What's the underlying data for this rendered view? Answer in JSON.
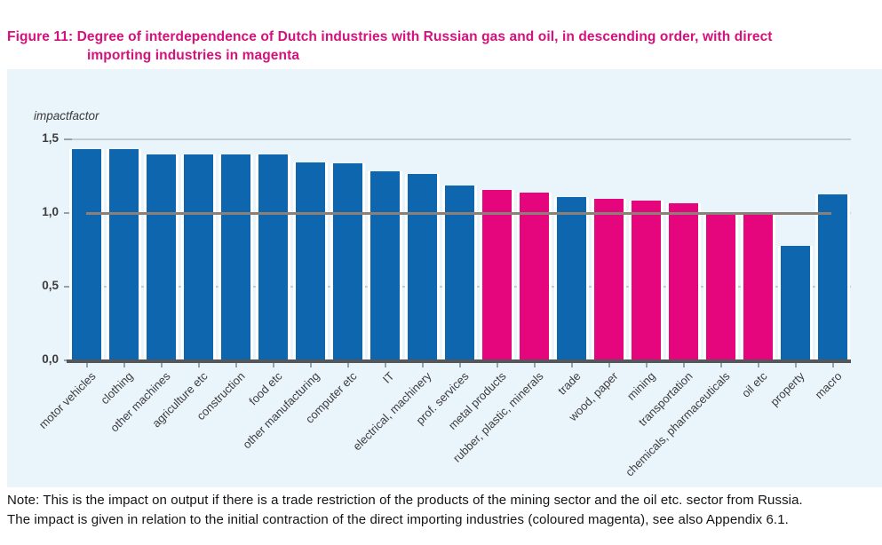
{
  "page": {
    "title": {
      "line1": "Figure 11: Degree of interdependence of Dutch industries with Russian gas and oil, in descending order, with direct",
      "line2": "importing industries in magenta",
      "color": "#d4117c"
    },
    "note": {
      "line1": "Note: This is the impact on output if there is a trade restriction of the products of the mining sector and the oil etc. sector from Russia.",
      "line2": "The impact is given in relation to the initial contraction of the direct importing industries (coloured magenta), see also Appendix 6.1."
    }
  },
  "chart_data": {
    "type": "bar",
    "title": "Degree of interdependence of Dutch industries with Russian gas and oil, in descending order, with direct importing industries in magenta",
    "ylabel": "impactfactor",
    "xlabel": "",
    "ylim": [
      0,
      1.5
    ],
    "grid": true,
    "legend": "none",
    "yticks": [
      {
        "value": 0.0,
        "label": "0,0"
      },
      {
        "value": 0.5,
        "label": "0,5"
      },
      {
        "value": 1.0,
        "label": "1,0"
      },
      {
        "value": 1.5,
        "label": "1,5"
      }
    ],
    "reference_line": {
      "y": 1.0,
      "description": "horizontal line at impactfactor 1,0 spanning first to last bar"
    },
    "categories": [
      "motor vehicles",
      "clothing",
      "other machines",
      "agriculture etc",
      "construction",
      "food etc",
      "other manufacturing",
      "computer etc",
      "IT",
      "electrical, machinery",
      "prof. services",
      "metal products",
      "rubber, plastic, minerals",
      "trade",
      "wood, paper",
      "mining",
      "transportation",
      "chemicals, pharmaceuticals",
      "oil etc",
      "property",
      "macro"
    ],
    "values": [
      1.43,
      1.43,
      1.39,
      1.39,
      1.39,
      1.39,
      1.34,
      1.33,
      1.28,
      1.26,
      1.18,
      1.15,
      1.13,
      1.1,
      1.09,
      1.08,
      1.06,
      0.99,
      0.99,
      0.77,
      1.12
    ],
    "direct_importer_magenta": [
      false,
      false,
      false,
      false,
      false,
      false,
      false,
      false,
      false,
      false,
      false,
      true,
      true,
      false,
      true,
      true,
      true,
      true,
      true,
      false,
      false
    ],
    "colors": {
      "bar_blue": "#0d66ae",
      "bar_magenta": "#e5067e",
      "panel_background": "#eaf4fb",
      "gridline": "#c6cdd2",
      "reference_line": "#8b8078",
      "axis_line": "#54565a",
      "tick": "#99a0a6",
      "axis_text": "#3d3d3d",
      "title_magenta": "#d4117c"
    }
  }
}
